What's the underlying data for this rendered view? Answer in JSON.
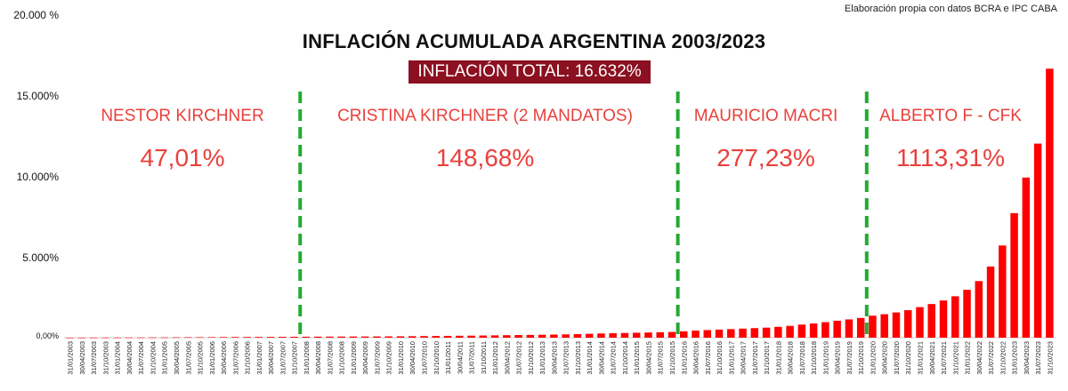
{
  "source_note": "Elaboración propia con datos BCRA e IPC CABA",
  "chart_data": {
    "type": "bar",
    "title": "INFLACIÓN ACUMULADA ARGENTINA 2003/2023",
    "subtitle": "INFLACIÓN TOTAL: 16.632%",
    "xlabel": "",
    "ylabel": "",
    "ylim": [
      0,
      20000
    ],
    "y_ticks": [
      "0,00%",
      "5.000%",
      "10.000%",
      "15.000%",
      "20.000 %"
    ],
    "y_tick_values": [
      0,
      5000,
      10000,
      15000,
      20000
    ],
    "bar_color": "#ff0000",
    "period_line_color": "#22aa33",
    "periods": [
      {
        "name": "NESTOR KIRCHNER",
        "value": "47,01%"
      },
      {
        "name": "CRISTINA KIRCHNER (2 MANDATOS)",
        "value": "148,68%"
      },
      {
        "name": "MAURICIO MACRI",
        "value": "277,23%"
      },
      {
        "name": "ALBERTO F - CFK",
        "value": "1113,31%"
      }
    ],
    "period_boundaries": [
      "31/12/2007",
      "31/12/2015",
      "31/12/2019"
    ],
    "categories": [
      "31/01/2003",
      "30/04/2003",
      "31/07/2003",
      "31/10/2003",
      "31/01/2004",
      "30/04/2004",
      "31/07/2004",
      "31/10/2004",
      "31/01/2005",
      "30/04/2005",
      "31/07/2005",
      "31/10/2005",
      "31/01/2006",
      "30/04/2006",
      "31/07/2006",
      "31/10/2006",
      "31/01/2007",
      "30/04/2007",
      "31/07/2007",
      "31/10/2007",
      "31/01/2008",
      "30/04/2008",
      "31/07/2008",
      "31/10/2008",
      "31/01/2009",
      "30/04/2009",
      "31/07/2009",
      "31/10/2009",
      "31/01/2010",
      "30/04/2010",
      "31/07/2010",
      "31/10/2010",
      "31/01/2011",
      "30/04/2011",
      "31/07/2011",
      "31/10/2011",
      "31/01/2012",
      "30/04/2012",
      "31/07/2012",
      "31/10/2012",
      "31/01/2013",
      "30/04/2013",
      "31/07/2013",
      "31/10/2013",
      "31/01/2014",
      "30/04/2014",
      "31/07/2014",
      "31/10/2014",
      "31/01/2015",
      "30/04/2015",
      "31/07/2015",
      "31/10/2015",
      "31/01/2016",
      "30/04/2016",
      "31/07/2016",
      "31/10/2016",
      "31/01/2017",
      "30/04/2017",
      "31/07/2017",
      "31/10/2017",
      "31/01/2018",
      "30/04/2018",
      "31/07/2018",
      "31/10/2018",
      "31/01/2019",
      "30/04/2019",
      "31/07/2019",
      "31/10/2019",
      "31/01/2020",
      "30/04/2020",
      "31/07/2020",
      "31/10/2020",
      "31/01/2021",
      "30/04/2021",
      "31/07/2021",
      "31/10/2021",
      "31/01/2022",
      "30/04/2022",
      "31/07/2022",
      "31/10/2022",
      "31/01/2023",
      "30/04/2023",
      "31/07/2023",
      "31/10/2023"
    ],
    "values": [
      1,
      3,
      5,
      7,
      9,
      11,
      13,
      14,
      17,
      21,
      25,
      29,
      33,
      37,
      41,
      44,
      46,
      49,
      52,
      55,
      59,
      63,
      67,
      70,
      72,
      74,
      77,
      80,
      85,
      91,
      98,
      105,
      112,
      119,
      126,
      134,
      143,
      153,
      162,
      171,
      181,
      192,
      204,
      218,
      240,
      260,
      275,
      290,
      305,
      320,
      338,
      355,
      395,
      440,
      470,
      500,
      530,
      560,
      590,
      620,
      670,
      730,
      810,
      880,
      960,
      1050,
      1130,
      1220,
      1360,
      1450,
      1560,
      1700,
      1890,
      2080,
      2300,
      2560,
      2960,
      3500,
      4400,
      5700,
      7700,
      9900,
      12000,
      16632
    ]
  }
}
